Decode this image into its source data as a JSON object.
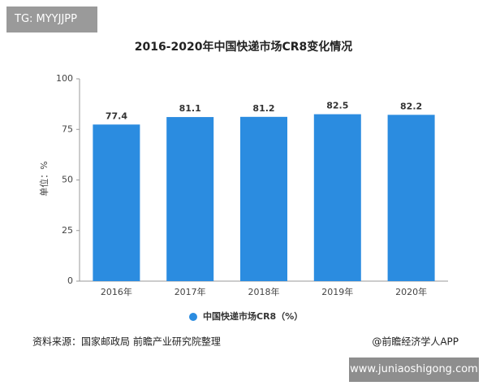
{
  "badge": "TG: MYYJJPP",
  "source": "资料来源：国家邮政局 前瞻产业研究院整理",
  "credit": "@前瞻经济学人APP",
  "site": "www.juniaoshigong.com",
  "chart_data": {
    "type": "bar",
    "title": "2016-2020年中国快递市场CR8变化情况",
    "y_label": "单位：%",
    "categories": [
      "2016年",
      "2017年",
      "2018年",
      "2019年",
      "2020年"
    ],
    "series": [
      {
        "name": "中国快递市场CR8（%）",
        "color": "#2b8ce0",
        "values": [
          77.4,
          81.1,
          81.2,
          82.5,
          82.2
        ]
      }
    ],
    "ylim": [
      0,
      100
    ],
    "yticks": [
      0,
      25,
      50,
      75,
      100
    ],
    "grid": false
  }
}
